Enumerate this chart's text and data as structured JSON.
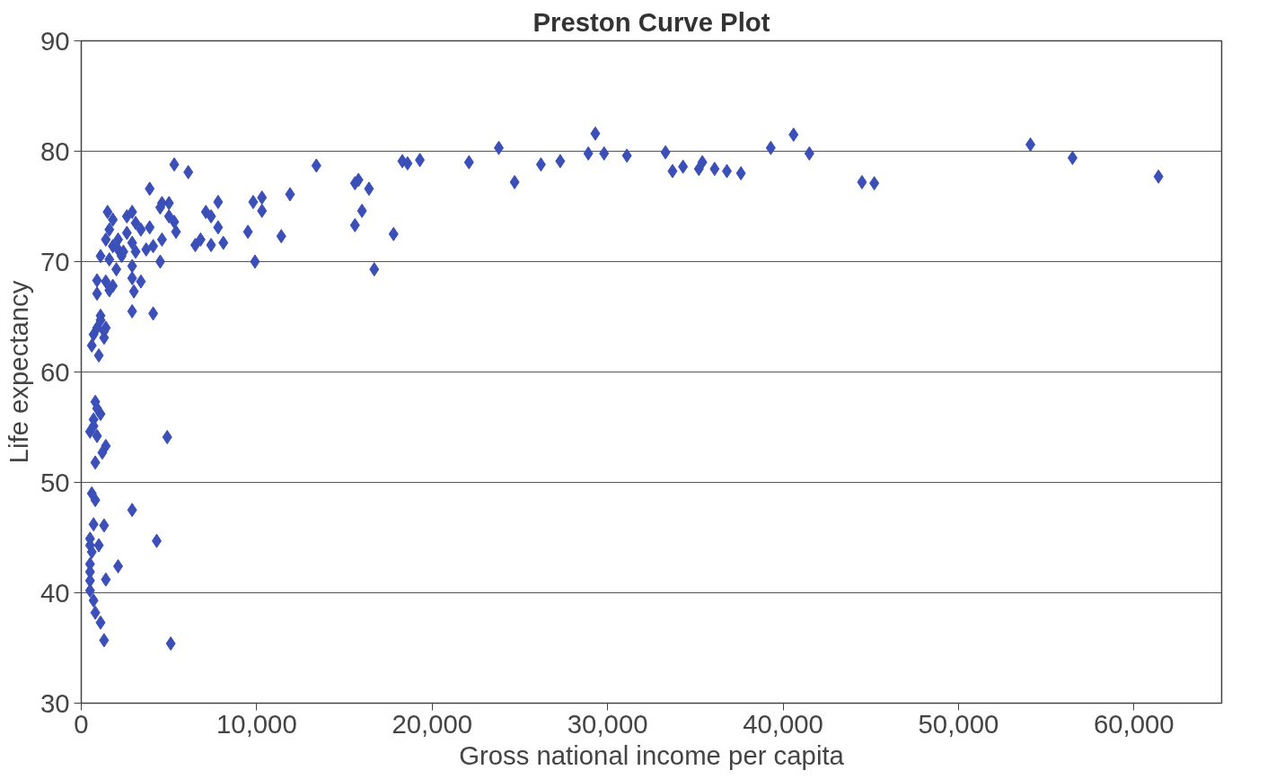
{
  "chart_data": {
    "type": "scatter",
    "title": "Preston Curve Plot",
    "xlabel": "Gross national income per capita",
    "ylabel": "Life expectancy",
    "xlim": [
      0,
      65000
    ],
    "ylim": [
      30,
      90
    ],
    "xticks": [
      {
        "value": 0,
        "label": "0"
      },
      {
        "value": 10000,
        "label": "10,000"
      },
      {
        "value": 20000,
        "label": "20,000"
      },
      {
        "value": 30000,
        "label": "30,000"
      },
      {
        "value": 40000,
        "label": "40,000"
      },
      {
        "value": 50000,
        "label": "50,000"
      },
      {
        "value": 60000,
        "label": "60,000"
      }
    ],
    "yticks": [
      30,
      40,
      50,
      60,
      70,
      80,
      90
    ],
    "grid": "y",
    "marker": "diamond",
    "series": [
      {
        "color": "#3b4fb8",
        "x": [
          54100,
          56500,
          61400,
          44500,
          45200,
          40600,
          41500,
          39300,
          15600,
          15800,
          16400,
          16000,
          15600,
          16700,
          17800,
          18300,
          18600,
          19300,
          22100,
          23800,
          24700,
          26200,
          27300,
          28900,
          29300,
          29800,
          31100,
          33300,
          33700,
          34300,
          35200,
          35400,
          36100,
          36800,
          37600,
          13400,
          11900,
          5300,
          6100,
          3900,
          7800,
          9800,
          10300,
          10300,
          7800,
          9500,
          11400,
          9900,
          7100,
          7400,
          6800,
          6500,
          7400,
          8100,
          5400,
          4600,
          4500,
          4600,
          5000,
          5000,
          5300,
          4500,
          3900,
          4100,
          3700,
          2900,
          2600,
          3100,
          3400,
          2600,
          2900,
          3100,
          2400,
          2900,
          2900,
          3400,
          3000,
          2900,
          4100,
          1500,
          1800,
          1600,
          1400,
          1800,
          2100,
          2100,
          1100,
          1600,
          2300,
          2000,
          900,
          1400,
          1800,
          900,
          1600,
          1100,
          900,
          1400,
          700,
          1300,
          600,
          1000,
          1100,
          1300,
          800,
          900,
          1100,
          700,
          700,
          500,
          900,
          1400,
          1200,
          800,
          4900,
          600,
          800,
          2900,
          700,
          1300,
          500,
          500,
          1000,
          600,
          4300,
          500,
          2100,
          500,
          1400,
          500,
          500,
          700,
          800,
          1100,
          1300,
          5100
        ],
        "values": [
          80.6,
          79.4,
          77.7,
          77.2,
          77.1,
          81.5,
          79.8,
          80.3,
          77.1,
          77.4,
          76.6,
          74.6,
          73.3,
          69.3,
          72.5,
          79.1,
          78.9,
          79.2,
          79.0,
          80.3,
          77.2,
          78.8,
          79.1,
          79.8,
          81.6,
          79.8,
          79.6,
          79.9,
          78.2,
          78.6,
          78.4,
          79.0,
          78.4,
          78.2,
          78.0,
          78.7,
          76.1,
          78.8,
          78.1,
          76.6,
          75.4,
          75.4,
          75.8,
          74.6,
          73.1,
          72.7,
          72.3,
          70.0,
          74.5,
          74.1,
          72.0,
          71.5,
          71.5,
          71.7,
          72.7,
          72.0,
          70.0,
          75.3,
          75.3,
          74.1,
          73.6,
          74.9,
          73.1,
          71.4,
          71.1,
          74.5,
          74.1,
          73.5,
          72.9,
          72.6,
          71.7,
          70.9,
          70.9,
          69.6,
          68.5,
          68.2,
          67.3,
          65.5,
          65.3,
          74.5,
          73.8,
          72.9,
          72.0,
          71.4,
          72.0,
          71.1,
          70.5,
          70.2,
          70.5,
          69.3,
          68.3,
          68.2,
          67.8,
          67.1,
          67.4,
          64.7,
          64.0,
          64.0,
          63.4,
          63.1,
          62.4,
          61.5,
          65.1,
          63.7,
          57.3,
          56.7,
          56.2,
          55.7,
          55.1,
          54.6,
          54.2,
          53.3,
          52.7,
          51.8,
          54.1,
          49.0,
          48.4,
          47.5,
          46.2,
          46.1,
          44.9,
          44.3,
          44.3,
          43.7,
          44.7,
          42.6,
          42.4,
          41.9,
          41.2,
          41.1,
          40.2,
          39.3,
          38.2,
          37.3,
          35.7,
          35.4
        ]
      }
    ]
  }
}
